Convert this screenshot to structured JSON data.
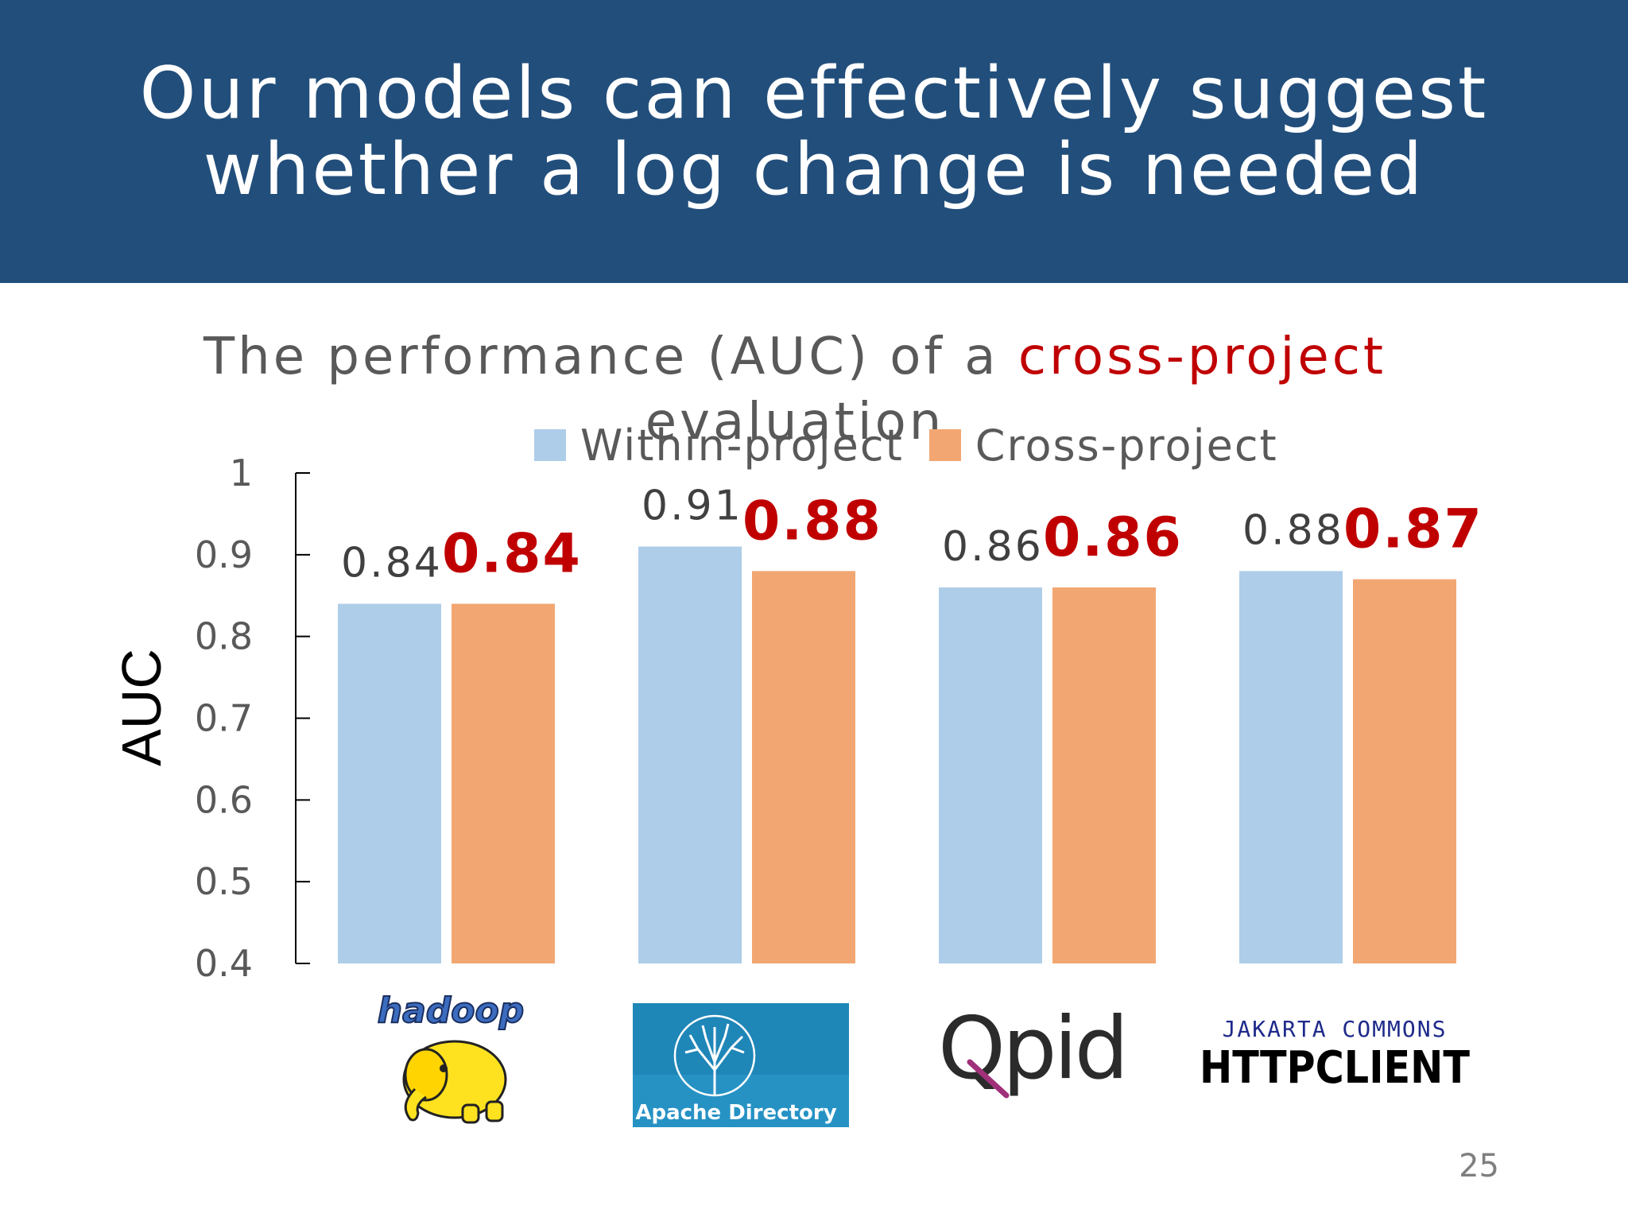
{
  "slide": {
    "title_line1": "Our models can effectively suggest",
    "title_line2": "whether a log change is needed",
    "page_number": "25"
  },
  "chart_data": {
    "type": "bar",
    "title_prefix": "The performance (AUC) of a ",
    "title_highlight": "cross-project",
    "title_suffix": "evaluation",
    "ylabel": "AUC",
    "xlabel": "",
    "ylim": [
      0.4,
      1.0
    ],
    "yticks": [
      "0.4",
      "0.5",
      "0.6",
      "0.7",
      "0.8",
      "0.9",
      "1"
    ],
    "categories": [
      "Hadoop",
      "Apache Directory",
      "Qpid",
      "HttpClient"
    ],
    "series": [
      {
        "name": "Within-project",
        "values": [
          0.84,
          0.91,
          0.86,
          0.88
        ],
        "labels": [
          "0.84",
          "0.91",
          "0.86",
          "0.88"
        ],
        "color": "#aecde9",
        "label_color": "#404040"
      },
      {
        "name": "Cross-project",
        "values": [
          0.84,
          0.88,
          0.86,
          0.87
        ],
        "labels": [
          "0.84",
          "0.88",
          "0.86",
          "0.87"
        ],
        "color": "#f2a772",
        "label_color": "#c00000"
      }
    ],
    "grid": false,
    "legend_position": "top"
  },
  "logos": {
    "hadoop": "hadoop",
    "apache_directory": "Apache Directory",
    "qpid": "Qpid",
    "jakarta": "JAKARTA COMMONS",
    "httpclient": "HTTPCLIENT"
  },
  "colors": {
    "header_bg": "#224e7b",
    "accent": "#c00000"
  }
}
